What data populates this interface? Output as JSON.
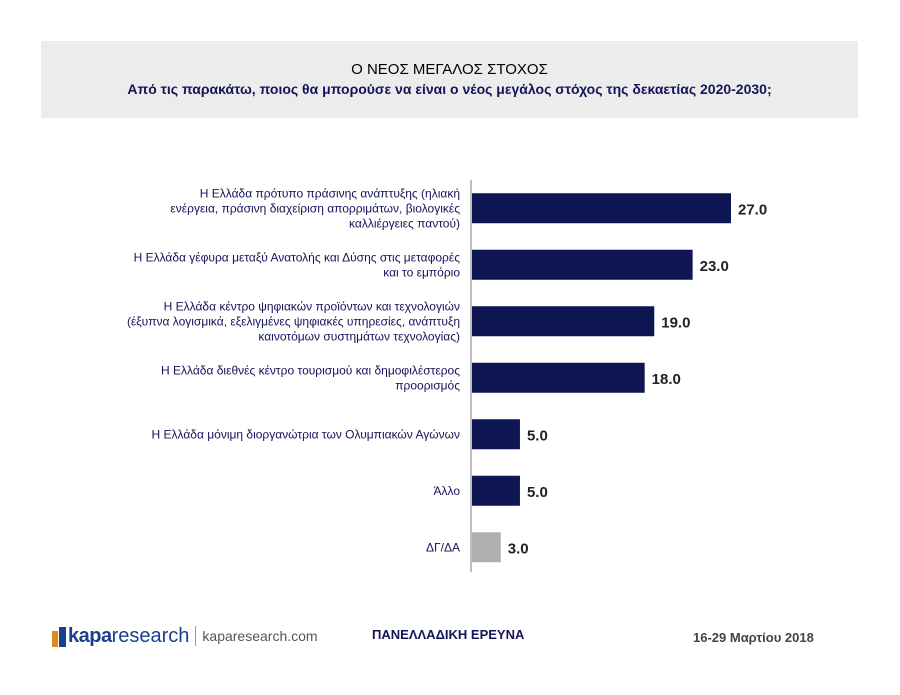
{
  "header": {
    "title": "Ο ΝΕΟΣ ΜΕΓΑΛΟΣ  ΣΤΟΧΟΣ",
    "subtitle": "Από τις παρακάτω, ποιος θα μπορούσε να είναι ο νέος μεγάλος στόχος της δεκαετίας 2020-2030;"
  },
  "chart_data": {
    "type": "bar",
    "orientation": "horizontal",
    "categories": [
      [
        "Η Ελλάδα πρότυπο πράσινης ανάπτυξης (ηλιακή",
        "ενέργεια, πράσινη διαχείριση απορριμάτων, βιολογικές",
        "καλλιέργειες παντού)"
      ],
      [
        "Η Ελλάδα γέφυρα μεταξύ Ανατολής και Δύσης στις μεταφορές",
        "και το εμπόριο"
      ],
      [
        "Η Ελλάδα κέντρο ψηφιακών προϊόντων και τεχνολογιών",
        "(έξυπνα λογισμικά, εξελιγμένες ψηφιακές υπηρεσίες, ανάπτυξη",
        "καινοτόμων συστημάτων τεχνολογίας)"
      ],
      [
        "Η Ελλάδα διεθνές κέντρο τουρισμού και δημοφιλέστερος",
        "προορισμός"
      ],
      [
        "Η Ελλάδα μόνιμη διοργανώτρια των Ολυμπιακών Αγώνων"
      ],
      [
        "Άλλο"
      ],
      [
        "ΔΓ/ΔΑ"
      ]
    ],
    "values": [
      27.0,
      23.0,
      19.0,
      18.0,
      5.0,
      5.0,
      3.0
    ],
    "value_labels": [
      "27.0",
      "23.0",
      "19.0",
      "18.0",
      "5.0",
      "5.0",
      "3.0"
    ],
    "bar_colors": [
      "#0f1654",
      "#0f1654",
      "#0f1654",
      "#0f1654",
      "#0f1654",
      "#0f1654",
      "#b0b0b0"
    ],
    "axis_color": "#7a7a7a",
    "xlim": [
      0,
      30
    ],
    "grid": false
  },
  "footer": {
    "logo_bold": "kapa",
    "logo_light": "research",
    "website": "kaparesearch.com",
    "survey": "ΠΑΝΕΛΛΑΔΙΚΗ ΕΡΕΥΝΑ",
    "date": "16-29 Μαρτίου 2018"
  }
}
